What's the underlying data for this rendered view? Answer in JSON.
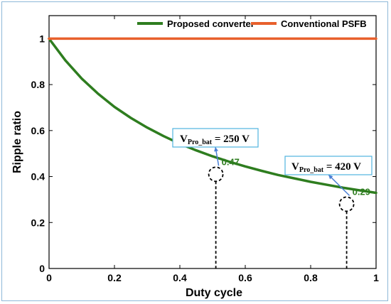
{
  "chart_data": {
    "type": "line",
    "xlabel": "Duty cycle",
    "ylabel": "Ripple ratio",
    "xlim": [
      0,
      1
    ],
    "ylim": [
      0,
      1.1
    ],
    "x_ticks": [
      "0",
      "0.2",
      "0.4",
      "0.6",
      "0.8",
      "1"
    ],
    "y_ticks": [
      "0",
      "0.2",
      "0.4",
      "0.6",
      "0.8",
      "1"
    ],
    "grid": false,
    "legend_placement": "top",
    "series": [
      {
        "name": "Proposed converter",
        "color": "#2e7d1f",
        "x": [
          0,
          0.05,
          0.1,
          0.15,
          0.2,
          0.25,
          0.3,
          0.35,
          0.4,
          0.45,
          0.5,
          0.55,
          0.6,
          0.65,
          0.7,
          0.75,
          0.8,
          0.85,
          0.9,
          0.95,
          1.0
        ],
        "y": [
          1.0,
          0.905,
          0.826,
          0.76,
          0.703,
          0.655,
          0.613,
          0.576,
          0.543,
          0.514,
          0.488,
          0.465,
          0.444,
          0.425,
          0.407,
          0.392,
          0.377,
          0.364,
          0.351,
          0.34,
          0.329
        ]
      },
      {
        "name": "Conventional PSFB",
        "color": "#e8602c",
        "x": [
          0,
          1
        ],
        "y": [
          1,
          1
        ]
      }
    ],
    "annotations": [
      {
        "x": 0.51,
        "y": 0.41,
        "value_label": "0.47",
        "callout_main": "V",
        "callout_sub": "Pro_bat",
        "callout_rest": " = 250 V"
      },
      {
        "x": 0.91,
        "y": 0.28,
        "value_label": "0.29",
        "callout_main": "V",
        "callout_sub": "Pro_bat",
        "callout_rest": " = 420 V"
      }
    ]
  }
}
